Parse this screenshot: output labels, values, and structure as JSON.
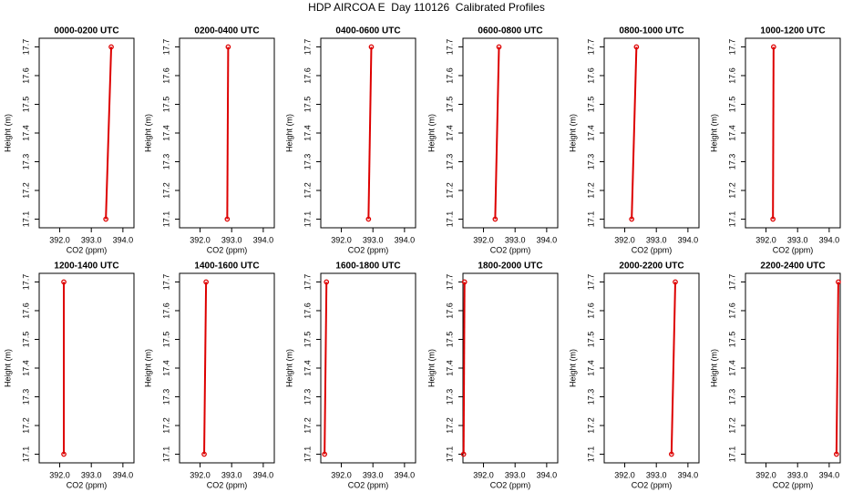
{
  "title": "HDP AIRCOA E  Day 110126  Calibrated Profiles",
  "chart_data": [
    {
      "type": "line",
      "title": "0000-0200 UTC",
      "xlabel": "CO2 (ppm)",
      "ylabel": "Height (m)",
      "x": [
        393.46,
        393.63
      ],
      "values": [
        17.1,
        17.7
      ],
      "color": "#dd0000",
      "marker": "circle",
      "xlim": [
        391.35,
        394.35
      ],
      "ylim": [
        17.07,
        17.73
      ],
      "xticks": [
        {
          "value": 392,
          "label": "392.0"
        },
        {
          "value": 393,
          "label": "393.0"
        },
        {
          "value": 394,
          "label": "394.0"
        }
      ],
      "yticks": [
        17.1,
        17.2,
        17.3,
        17.4,
        17.5,
        17.6,
        17.7
      ]
    },
    {
      "type": "line",
      "title": "0200-0400 UTC",
      "xlabel": "CO2 (ppm)",
      "ylabel": "Height (m)",
      "x": [
        392.86,
        392.89
      ],
      "values": [
        17.1,
        17.7
      ],
      "color": "#dd0000",
      "marker": "circle",
      "xlim": [
        391.35,
        394.35
      ],
      "ylim": [
        17.07,
        17.73
      ],
      "xticks": [
        {
          "value": 392,
          "label": "392.0"
        },
        {
          "value": 393,
          "label": "393.0"
        },
        {
          "value": 394,
          "label": "394.0"
        }
      ],
      "yticks": [
        17.1,
        17.2,
        17.3,
        17.4,
        17.5,
        17.6,
        17.7
      ]
    },
    {
      "type": "line",
      "title": "0400-0600 UTC",
      "xlabel": "CO2 (ppm)",
      "ylabel": "Height (m)",
      "x": [
        392.86,
        392.95
      ],
      "values": [
        17.1,
        17.7
      ],
      "color": "#dd0000",
      "marker": "circle",
      "xlim": [
        391.35,
        394.35
      ],
      "ylim": [
        17.07,
        17.73
      ],
      "xticks": [
        {
          "value": 392,
          "label": "392.0"
        },
        {
          "value": 393,
          "label": "393.0"
        },
        {
          "value": 394,
          "label": "394.0"
        }
      ],
      "yticks": [
        17.1,
        17.2,
        17.3,
        17.4,
        17.5,
        17.6,
        17.7
      ]
    },
    {
      "type": "line",
      "title": "0600-0800 UTC",
      "xlabel": "CO2 (ppm)",
      "ylabel": "Height (m)",
      "x": [
        392.37,
        392.49
      ],
      "values": [
        17.1,
        17.7
      ],
      "color": "#dd0000",
      "marker": "circle",
      "xlim": [
        391.35,
        394.35
      ],
      "ylim": [
        17.07,
        17.73
      ],
      "xticks": [
        {
          "value": 392,
          "label": "392.0"
        },
        {
          "value": 393,
          "label": "393.0"
        },
        {
          "value": 394,
          "label": "394.0"
        }
      ],
      "yticks": [
        17.1,
        17.2,
        17.3,
        17.4,
        17.5,
        17.6,
        17.7
      ]
    },
    {
      "type": "line",
      "title": "0800-1000 UTC",
      "xlabel": "CO2 (ppm)",
      "ylabel": "Height (m)",
      "x": [
        392.22,
        392.37
      ],
      "values": [
        17.1,
        17.7
      ],
      "color": "#dd0000",
      "marker": "circle",
      "xlim": [
        391.35,
        394.35
      ],
      "ylim": [
        17.07,
        17.73
      ],
      "xticks": [
        {
          "value": 392,
          "label": "392.0"
        },
        {
          "value": 393,
          "label": "393.0"
        },
        {
          "value": 394,
          "label": "394.0"
        }
      ],
      "yticks": [
        17.1,
        17.2,
        17.3,
        17.4,
        17.5,
        17.6,
        17.7
      ]
    },
    {
      "type": "line",
      "title": "1000-1200 UTC",
      "xlabel": "CO2 (ppm)",
      "ylabel": "Height (m)",
      "x": [
        392.22,
        392.24
      ],
      "values": [
        17.1,
        17.7
      ],
      "color": "#dd0000",
      "marker": "circle",
      "xlim": [
        391.35,
        394.35
      ],
      "ylim": [
        17.07,
        17.73
      ],
      "xticks": [
        {
          "value": 392,
          "label": "392.0"
        },
        {
          "value": 393,
          "label": "393.0"
        },
        {
          "value": 394,
          "label": "394.0"
        }
      ],
      "yticks": [
        17.1,
        17.2,
        17.3,
        17.4,
        17.5,
        17.6,
        17.7
      ]
    },
    {
      "type": "line",
      "title": "1200-1400 UTC",
      "xlabel": "CO2 (ppm)",
      "ylabel": "Height (m)",
      "x": [
        392.13,
        392.13
      ],
      "values": [
        17.1,
        17.7
      ],
      "color": "#dd0000",
      "marker": "circle",
      "xlim": [
        391.35,
        394.35
      ],
      "ylim": [
        17.07,
        17.73
      ],
      "xticks": [
        {
          "value": 392,
          "label": "392.0"
        },
        {
          "value": 393,
          "label": "393.0"
        },
        {
          "value": 394,
          "label": "394.0"
        }
      ],
      "yticks": [
        17.1,
        17.2,
        17.3,
        17.4,
        17.5,
        17.6,
        17.7
      ]
    },
    {
      "type": "line",
      "title": "1400-1600 UTC",
      "xlabel": "CO2 (ppm)",
      "ylabel": "Height (m)",
      "x": [
        392.13,
        392.19
      ],
      "values": [
        17.1,
        17.7
      ],
      "color": "#dd0000",
      "marker": "circle",
      "xlim": [
        391.35,
        394.35
      ],
      "ylim": [
        17.07,
        17.73
      ],
      "xticks": [
        {
          "value": 392,
          "label": "392.0"
        },
        {
          "value": 393,
          "label": "393.0"
        },
        {
          "value": 394,
          "label": "394.0"
        }
      ],
      "yticks": [
        17.1,
        17.2,
        17.3,
        17.4,
        17.5,
        17.6,
        17.7
      ]
    },
    {
      "type": "line",
      "title": "1600-1800 UTC",
      "xlabel": "CO2 (ppm)",
      "ylabel": "Height (m)",
      "x": [
        391.47,
        391.53
      ],
      "values": [
        17.1,
        17.7
      ],
      "color": "#dd0000",
      "marker": "circle",
      "xlim": [
        391.35,
        394.35
      ],
      "ylim": [
        17.07,
        17.73
      ],
      "xticks": [
        {
          "value": 392,
          "label": "392.0"
        },
        {
          "value": 393,
          "label": "393.0"
        },
        {
          "value": 394,
          "label": "394.0"
        }
      ],
      "yticks": [
        17.1,
        17.2,
        17.3,
        17.4,
        17.5,
        17.6,
        17.7
      ]
    },
    {
      "type": "line",
      "title": "1800-2000 UTC",
      "xlabel": "CO2 (ppm)",
      "ylabel": "Height (m)",
      "x": [
        391.37,
        391.4
      ],
      "values": [
        17.1,
        17.7
      ],
      "color": "#dd0000",
      "marker": "circle",
      "xlim": [
        391.35,
        394.35
      ],
      "ylim": [
        17.07,
        17.73
      ],
      "xticks": [
        {
          "value": 392,
          "label": "392.0"
        },
        {
          "value": 393,
          "label": "393.0"
        },
        {
          "value": 394,
          "label": "394.0"
        }
      ],
      "yticks": [
        17.1,
        17.2,
        17.3,
        17.4,
        17.5,
        17.6,
        17.7
      ]
    },
    {
      "type": "line",
      "title": "2000-2200 UTC",
      "xlabel": "CO2 (ppm)",
      "ylabel": "Height (m)",
      "x": [
        393.48,
        393.6
      ],
      "values": [
        17.1,
        17.7
      ],
      "color": "#dd0000",
      "marker": "circle",
      "xlim": [
        391.35,
        394.35
      ],
      "ylim": [
        17.07,
        17.73
      ],
      "xticks": [
        {
          "value": 392,
          "label": "392.0"
        },
        {
          "value": 393,
          "label": "393.0"
        },
        {
          "value": 394,
          "label": "394.0"
        }
      ],
      "yticks": [
        17.1,
        17.2,
        17.3,
        17.4,
        17.5,
        17.6,
        17.7
      ]
    },
    {
      "type": "line",
      "title": "2200-2400 UTC",
      "xlabel": "CO2 (ppm)",
      "ylabel": "Height (m)",
      "x": [
        394.23,
        394.29
      ],
      "values": [
        17.1,
        17.7
      ],
      "color": "#dd0000",
      "marker": "circle",
      "xlim": [
        391.35,
        394.35
      ],
      "ylim": [
        17.07,
        17.73
      ],
      "xticks": [
        {
          "value": 392,
          "label": "392.0"
        },
        {
          "value": 393,
          "label": "393.0"
        },
        {
          "value": 394,
          "label": "394.0"
        }
      ],
      "yticks": [
        17.1,
        17.2,
        17.3,
        17.4,
        17.5,
        17.6,
        17.7
      ]
    }
  ]
}
